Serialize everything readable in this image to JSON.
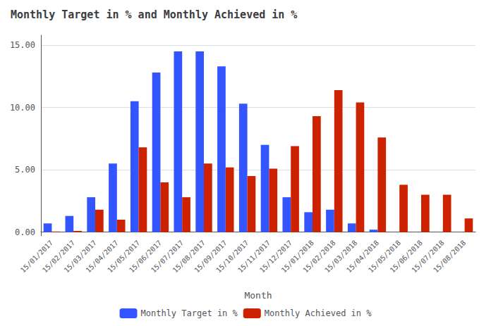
{
  "chart_data": {
    "type": "bar",
    "title": "Monthly Target in % and Monthly Achieved in %",
    "xlabel": "Month",
    "categories": [
      "15/01/2017",
      "15/02/2017",
      "15/03/2017",
      "15/04/2017",
      "15/05/2017",
      "15/06/2017",
      "15/07/2017",
      "15/08/2017",
      "15/09/2017",
      "15/10/2017",
      "15/11/2017",
      "15/12/2017",
      "15/01/2018",
      "15/02/2018",
      "15/03/2018",
      "15/04/2018",
      "15/05/2018",
      "15/06/2018",
      "15/07/2018",
      "15/08/2018"
    ],
    "series": [
      {
        "name": "Monthly Target in %",
        "color": "#3355ff",
        "values": [
          0.7,
          1.3,
          2.8,
          5.5,
          10.5,
          12.8,
          14.5,
          14.5,
          13.3,
          10.3,
          7.0,
          2.8,
          1.6,
          1.8,
          0.7,
          0.2,
          0.0,
          0.0,
          0.0,
          0.0
        ]
      },
      {
        "name": "Monthly Achieved in %",
        "color": "#cc2200",
        "values": [
          0.05,
          0.1,
          1.8,
          1.0,
          6.8,
          4.0,
          2.8,
          5.5,
          5.2,
          4.5,
          5.1,
          6.9,
          9.3,
          11.4,
          10.4,
          7.6,
          3.8,
          3.0,
          3.0,
          1.1
        ]
      }
    ],
    "ylim": [
      -0.3,
      15.8
    ],
    "yticks": [
      {
        "value": 0.0,
        "label": "0.00"
      },
      {
        "value": 5.0,
        "label": "5.00"
      },
      {
        "value": 10.0,
        "label": "10.00"
      },
      {
        "value": 15.0,
        "label": "15.00"
      }
    ],
    "grid": true,
    "legend": "bottom"
  }
}
